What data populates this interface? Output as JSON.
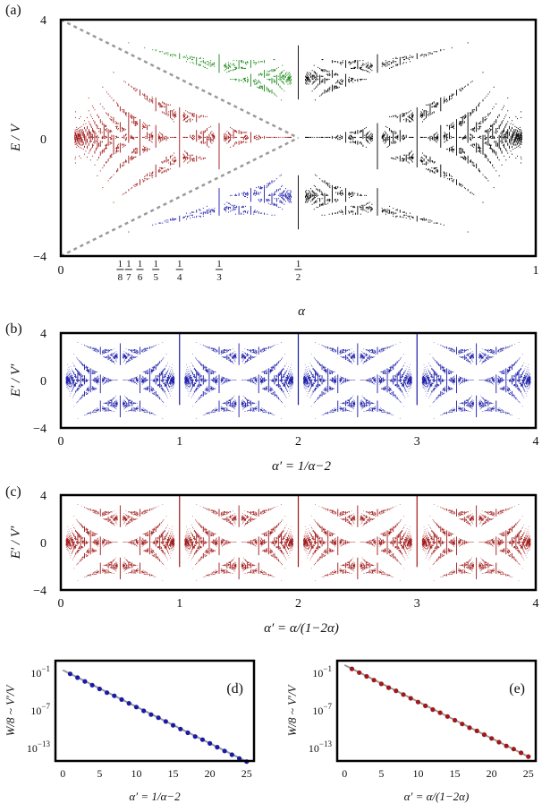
{
  "figure": {
    "panels": {
      "a": {
        "label": "(a)",
        "ylabel": "E / V",
        "xlabel": "α",
        "yticks": [
          "−4",
          "0",
          "4"
        ],
        "xticks_main": [
          "0",
          "1"
        ],
        "fraction_ticks": [
          {
            "num": "1",
            "den": "8"
          },
          {
            "num": "1",
            "den": "7"
          },
          {
            "num": "1",
            "den": "6"
          },
          {
            "num": "1",
            "den": "5"
          },
          {
            "num": "1",
            "den": "4"
          },
          {
            "num": "1",
            "den": "3"
          },
          {
            "num": "1",
            "den": "2"
          }
        ]
      },
      "b": {
        "label": "(b)",
        "ylabel": "E′ / V′",
        "xlabel": "α′ = 1/α−2",
        "yticks": [
          "−4",
          "0",
          "4"
        ],
        "xticks": [
          "0",
          "1",
          "2",
          "3",
          "4"
        ]
      },
      "c": {
        "label": "(c)",
        "ylabel": "E′ / V′",
        "xlabel": "α′ = α/(1−2α)",
        "yticks": [
          "−4",
          "0",
          "4"
        ],
        "xticks": [
          "0",
          "1",
          "2",
          "3",
          "4"
        ]
      },
      "d": {
        "label": "(d)",
        "ylabel": "W/8 ~ V′/V",
        "xlabel": "α′ = 1/α−2",
        "yticks": [
          "10−1",
          "10−7",
          "10−13"
        ],
        "xticks": [
          "0",
          "5",
          "10",
          "15",
          "20",
          "25"
        ]
      },
      "e": {
        "label": "(e)",
        "ylabel": "W/8 ~ V′/V",
        "xlabel": "α′ = α/(1−2α)",
        "yticks": [
          "10−1",
          "10−7",
          "10−13"
        ],
        "xticks": [
          "0",
          "5",
          "10",
          "15",
          "20",
          "25"
        ]
      }
    }
  },
  "chart_data": [
    {
      "panel": "a",
      "type": "scatter",
      "description_of_data": "Hofstadter-butterfly-like spectrum E/V vs alpha, with bands colored by region",
      "xlim": [
        0,
        1
      ],
      "ylim": [
        -4,
        4
      ],
      "colors": {
        "red": "#a01818",
        "green": "#1a8a1a",
        "blue": "#1a1aa8",
        "black": "#000000",
        "guide": "#9a9a9a"
      },
      "guide_lines": [
        {
          "x": [
            0,
            0.5
          ],
          "y": [
            4,
            0
          ]
        },
        {
          "x": [
            0,
            0.5
          ],
          "y": [
            -4,
            0
          ]
        }
      ]
    },
    {
      "panel": "b",
      "type": "scatter",
      "xlim": [
        0,
        4
      ],
      "ylim": [
        -4,
        4
      ],
      "color": "#1a1aa8"
    },
    {
      "panel": "c",
      "type": "scatter",
      "xlim": [
        0,
        4
      ],
      "ylim": [
        -4,
        4
      ],
      "color": "#a01818"
    },
    {
      "panel": "d",
      "type": "scatter",
      "xlim": [
        -1,
        26
      ],
      "ylog_range": [
        -15,
        1
      ],
      "color": "#1a1aa8",
      "x": [
        1,
        2,
        3,
        4,
        5,
        6,
        7,
        8,
        9,
        10,
        11,
        12,
        13,
        14,
        15,
        16,
        17,
        18,
        19,
        20,
        21,
        22,
        23,
        24,
        25
      ],
      "log10_y": [
        -1.1,
        -1.7,
        -2.3,
        -2.9,
        -3.5,
        -4.1,
        -4.6,
        -5.2,
        -5.8,
        -6.4,
        -7.0,
        -7.6,
        -8.1,
        -8.7,
        -9.3,
        -9.9,
        -10.5,
        -11.1,
        -11.6,
        -12.2,
        -12.8,
        -13.4,
        -14.0,
        -14.6,
        -15.1
      ]
    },
    {
      "panel": "e",
      "type": "scatter",
      "xlim": [
        -1,
        26
      ],
      "ylog_range": [
        -15,
        1
      ],
      "color": "#a01818",
      "x": [
        1,
        2,
        3,
        4,
        5,
        6,
        7,
        8,
        9,
        10,
        11,
        12,
        13,
        14,
        15,
        16,
        17,
        18,
        19,
        20,
        21,
        22,
        23,
        24,
        25
      ],
      "log10_y": [
        -0.3,
        -0.9,
        -1.5,
        -2.1,
        -2.7,
        -3.3,
        -3.8,
        -4.4,
        -5.0,
        -5.6,
        -6.2,
        -6.8,
        -7.3,
        -7.9,
        -8.5,
        -9.1,
        -9.7,
        -10.2,
        -10.8,
        -11.4,
        -12.0,
        -12.6,
        -13.1,
        -13.7,
        -14.3
      ]
    }
  ]
}
